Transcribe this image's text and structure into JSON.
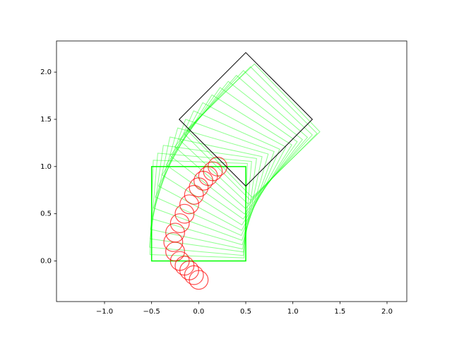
{
  "chart_data": {
    "type": "trajectory",
    "xlim": [
      -1.51,
      2.21
    ],
    "ylim": [
      -0.43,
      2.33
    ],
    "xticks": [
      {
        "value": -1.0,
        "label": "−1.0"
      },
      {
        "value": -0.5,
        "label": "−0.5"
      },
      {
        "value": 0.0,
        "label": "0.0"
      },
      {
        "value": 0.5,
        "label": "0.5"
      },
      {
        "value": 1.0,
        "label": "1.0"
      },
      {
        "value": 1.5,
        "label": "1.5"
      },
      {
        "value": 2.0,
        "label": "2.0"
      }
    ],
    "yticks": [
      {
        "value": 0.0,
        "label": "0.0"
      },
      {
        "value": 0.5,
        "label": "0.5"
      },
      {
        "value": 1.0,
        "label": "1.0"
      },
      {
        "value": 1.5,
        "label": "1.5"
      },
      {
        "value": 2.0,
        "label": "2.0"
      }
    ],
    "object": {
      "color": "#00ff00",
      "size": 1,
      "x": [
        0,
        0.0,
        0.02,
        0.05,
        0.08,
        0.12,
        0.16,
        0.2,
        0.25,
        0.3,
        0.35,
        0.4,
        0.45,
        0.5,
        0.55,
        0.58
      ],
      "y": [
        0.5,
        0.55,
        0.6,
        0.66,
        0.72,
        0.79,
        0.86,
        0.93,
        1.0,
        1.07,
        1.14,
        1.2,
        1.26,
        1.31,
        1.35,
        1.38
      ],
      "theta": [
        0,
        -2,
        -5,
        -8,
        -12,
        -16,
        -20,
        -24,
        -28,
        -32,
        -35,
        -38,
        -41,
        -43,
        -45,
        -46
      ]
    },
    "pusher": {
      "color": "#ff0000",
      "radius": 0.1,
      "x": [
        0,
        -0.05,
        -0.1,
        -0.15,
        -0.2,
        -0.25,
        -0.27,
        -0.25,
        -0.2,
        -0.15,
        -0.1,
        -0.05,
        0,
        0.05,
        0.1,
        0.15,
        0.2
      ],
      "y": [
        -0.2,
        -0.15,
        -0.1,
        -0.05,
        0.0,
        0.1,
        0.2,
        0.3,
        0.4,
        0.5,
        0.6,
        0.7,
        0.78,
        0.85,
        0.9,
        0.95,
        1.0
      ]
    },
    "target": {
      "color": "#000000",
      "x": 0.5,
      "y": 1.5,
      "theta": 45,
      "size": 1
    }
  }
}
